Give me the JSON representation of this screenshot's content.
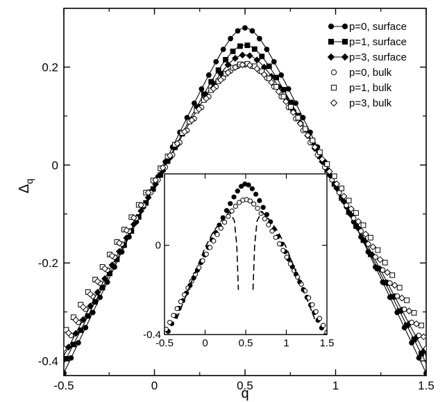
{
  "chart_data": [
    {
      "type": "scatter",
      "title": "",
      "xlabel": "q",
      "ylabel": "Δ_q",
      "ylabel_main": "Δ",
      "ylabel_sub": "q",
      "xlim": [
        -0.5,
        1.5
      ],
      "ylim": [
        -0.43,
        0.32
      ],
      "xticks": [
        -0.5,
        0,
        0.5,
        1,
        1.5
      ],
      "xtick_labels": [
        "-0.5",
        "0",
        "0.5",
        "1",
        "1.5"
      ],
      "yticks": [
        -0.4,
        -0.2,
        0,
        0.2
      ],
      "ytick_labels": [
        "-0.4",
        "-0.2",
        "0",
        "0.2"
      ],
      "grid": false,
      "legend_position": "top-right",
      "model": "piecewise-linear with parabolic cap: y = peak - slope*|q-0.5| when |q-0.5| > peak/slope*? ; values sampled in data units",
      "series": [
        {
          "name": "p=0, surface",
          "marker": "filled-circle",
          "line": true,
          "peak": 0.28,
          "y_at_-0.5": -0.425,
          "rounding": 0.1
        },
        {
          "name": "p=1, surface",
          "marker": "filled-square",
          "line": true,
          "peak": 0.245,
          "y_at_-0.5": -0.405,
          "rounding": 0.12
        },
        {
          "name": "p=3, surface",
          "marker": "filled-diamond",
          "line": true,
          "peak": 0.225,
          "y_at_-0.5": -0.39,
          "rounding": 0.14
        },
        {
          "name": "p=0, bulk",
          "marker": "open-circle",
          "line": false,
          "peak": 0.205,
          "y_at_-0.5": -0.375,
          "rounding": 0.16
        },
        {
          "name": "p=1, bulk",
          "marker": "open-square",
          "line": false,
          "peak": 0.207,
          "y_at_-0.5": -0.345,
          "rounding": 0.17
        },
        {
          "name": "p=3, bulk",
          "marker": "open-diamond",
          "line": false,
          "peak": 0.205,
          "y_at_-0.5": -0.36,
          "rounding": 0.17
        }
      ]
    },
    {
      "type": "scatter",
      "title": "",
      "xlabel": "",
      "ylabel": "",
      "xlim": [
        -0.5,
        1.5
      ],
      "ylim": [
        -0.4,
        0.32
      ],
      "xticks": [
        -0.5,
        0,
        0.5,
        1,
        1.5
      ],
      "xtick_labels": [
        "-0.5",
        "0",
        "0.5",
        "1",
        "1.5"
      ],
      "yticks": [
        -0.4,
        0
      ],
      "ytick_labels": [
        "-0.4",
        "0"
      ],
      "series": [
        {
          "marker": "filled-circle",
          "line": false,
          "peak": 0.275,
          "y_at_-0.5": -0.42,
          "rounding": 0.1
        },
        {
          "marker": "open-circle",
          "line": false,
          "peak": 0.205,
          "y_at_-0.5": -0.39,
          "rounding": 0.16
        },
        {
          "marker": "none",
          "line": "dashed",
          "description_values": {
            "left_branch": [
              [
                -0.35,
                -0.33
              ],
              [
                0.0,
                -0.01
              ],
              [
                0.1,
                0.06
              ],
              [
                0.2,
                0.11
              ],
              [
                0.3,
                0.15
              ],
              [
                0.36,
                0.11
              ],
              [
                0.39,
                0.0
              ],
              [
                0.41,
                -0.2
              ]
            ],
            "right_branch": [
              [
                0.59,
                -0.2
              ],
              [
                0.61,
                0.0
              ],
              [
                0.64,
                0.11
              ],
              [
                0.7,
                0.15
              ],
              [
                0.8,
                0.11
              ],
              [
                0.9,
                0.06
              ],
              [
                1.0,
                -0.01
              ],
              [
                1.35,
                -0.33
              ]
            ]
          }
        }
      ]
    }
  ]
}
